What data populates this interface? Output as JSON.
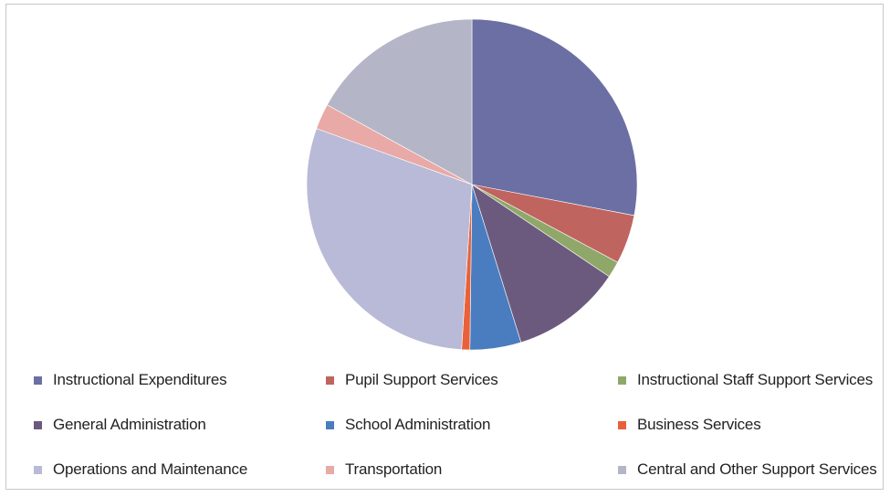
{
  "chart_data": {
    "type": "pie",
    "title": "",
    "legend_position": "bottom",
    "slices": [
      {
        "label": "Instructional Expenditures",
        "value": 28.0,
        "color": "#6b6fa3"
      },
      {
        "label": "Pupil Support Services",
        "value": 4.8,
        "color": "#c0645f"
      },
      {
        "label": "Instructional Staff Support Services",
        "value": 1.6,
        "color": "#8fa86a"
      },
      {
        "label": "General Administration",
        "value": 10.8,
        "color": "#6c5a7e"
      },
      {
        "label": "School Administration",
        "value": 5.0,
        "color": "#4a7cc0"
      },
      {
        "label": "Business Services",
        "value": 0.8,
        "color": "#e8613a"
      },
      {
        "label": "Operations and Maintenance",
        "value": 29.5,
        "color": "#b9b9d8"
      },
      {
        "label": "Transportation",
        "value": 2.5,
        "color": "#e8a9a7"
      },
      {
        "label": "Central and Other Support Services",
        "value": 17.0,
        "color": "#b4b6c7"
      }
    ]
  }
}
